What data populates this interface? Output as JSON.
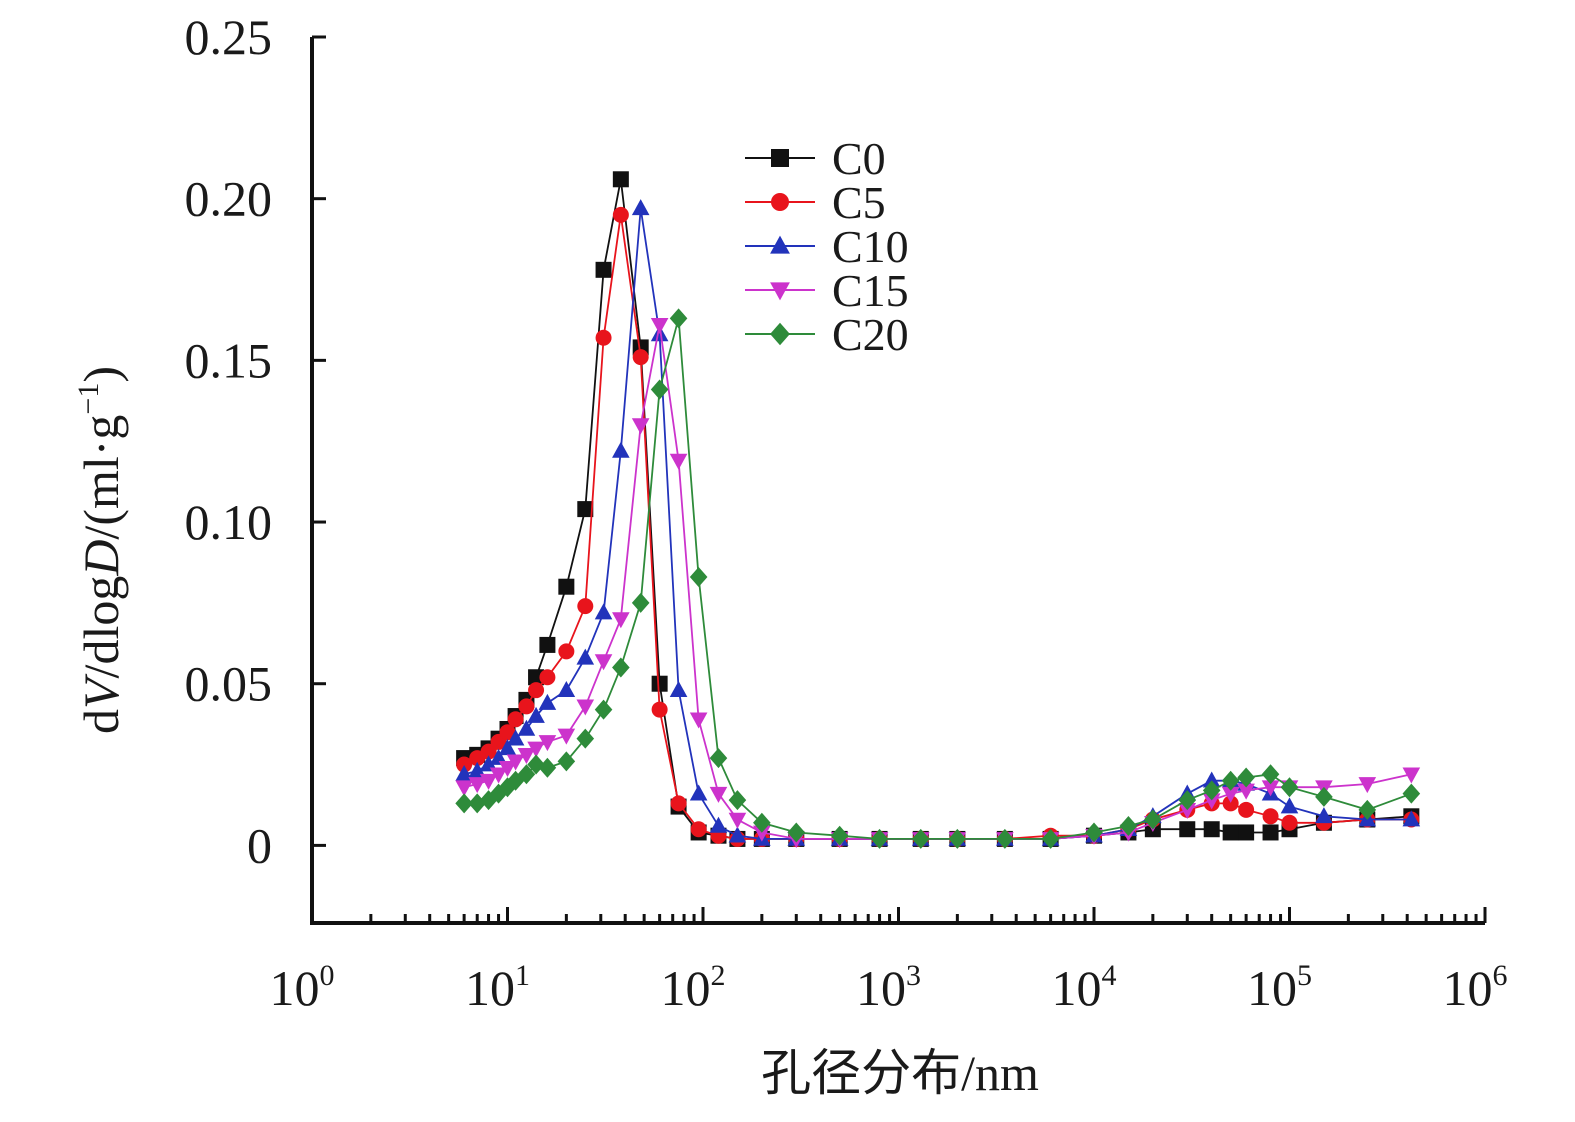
{
  "chart_data": {
    "type": "line",
    "title": "",
    "xlabel": "孔径分布/nm",
    "ylabel": "dV/dlogD/(ml·g⁻¹)",
    "xscale": "log",
    "xlim": [
      1,
      1000000
    ],
    "ylim": [
      -0.024,
      0.25
    ],
    "grid": false,
    "legend_position": "top-center",
    "x_ticks": [
      {
        "value": 1,
        "base": "10",
        "exp": "0"
      },
      {
        "value": 10,
        "base": "10",
        "exp": "1"
      },
      {
        "value": 100,
        "base": "10",
        "exp": "2"
      },
      {
        "value": 1000,
        "base": "10",
        "exp": "3"
      },
      {
        "value": 10000,
        "base": "10",
        "exp": "4"
      },
      {
        "value": 100000,
        "base": "10",
        "exp": "5"
      },
      {
        "value": 1000000,
        "base": "10",
        "exp": "6"
      }
    ],
    "y_ticks": [
      {
        "value": 0,
        "label": "0"
      },
      {
        "value": 0.05,
        "label": "0.05"
      },
      {
        "value": 0.1,
        "label": "0.10"
      },
      {
        "value": 0.15,
        "label": "0.15"
      },
      {
        "value": 0.2,
        "label": "0.20"
      },
      {
        "value": 0.25,
        "label": "0.25"
      }
    ],
    "series": [
      {
        "name": "C0",
        "color": "#111111",
        "marker": "square",
        "x": [
          6,
          7,
          8,
          9,
          10,
          11,
          12.5,
          14,
          16,
          20,
          25,
          31,
          38,
          48,
          60,
          75,
          95,
          120,
          150,
          200,
          300,
          500,
          800,
          1300,
          2000,
          3500,
          6000,
          10000,
          15000,
          20000,
          30000,
          40000,
          50000,
          60000,
          80000,
          100000,
          150000,
          250000,
          420000
        ],
        "y": [
          0.027,
          0.028,
          0.03,
          0.033,
          0.036,
          0.04,
          0.045,
          0.052,
          0.062,
          0.08,
          0.104,
          0.178,
          0.206,
          0.154,
          0.05,
          0.012,
          0.004,
          0.003,
          0.002,
          0.002,
          0.002,
          0.002,
          0.002,
          0.002,
          0.002,
          0.002,
          0.002,
          0.003,
          0.004,
          0.005,
          0.005,
          0.005,
          0.004,
          0.004,
          0.004,
          0.005,
          0.007,
          0.008,
          0.009
        ]
      },
      {
        "name": "C5",
        "color": "#e8141c",
        "marker": "circle",
        "x": [
          6,
          7,
          8,
          9,
          10,
          11,
          12.5,
          14,
          16,
          20,
          25,
          31,
          38,
          48,
          60,
          75,
          95,
          120,
          150,
          200,
          300,
          500,
          800,
          1300,
          2000,
          3500,
          6000,
          10000,
          15000,
          20000,
          30000,
          40000,
          50000,
          60000,
          80000,
          100000,
          150000,
          250000,
          420000
        ],
        "y": [
          0.025,
          0.027,
          0.029,
          0.032,
          0.035,
          0.039,
          0.043,
          0.048,
          0.052,
          0.06,
          0.074,
          0.157,
          0.195,
          0.151,
          0.042,
          0.013,
          0.005,
          0.003,
          0.002,
          0.002,
          0.002,
          0.002,
          0.002,
          0.002,
          0.002,
          0.002,
          0.003,
          0.003,
          0.005,
          0.008,
          0.011,
          0.013,
          0.013,
          0.011,
          0.009,
          0.007,
          0.007,
          0.008,
          0.008
        ]
      },
      {
        "name": "C10",
        "color": "#2233bb",
        "marker": "triangle-up",
        "x": [
          6,
          7,
          8,
          9,
          10,
          11,
          12.5,
          14,
          16,
          20,
          25,
          31,
          38,
          48,
          60,
          75,
          95,
          120,
          150,
          200,
          300,
          500,
          800,
          1300,
          2000,
          3500,
          6000,
          10000,
          15000,
          20000,
          30000,
          40000,
          50000,
          60000,
          80000,
          100000,
          150000,
          250000,
          420000
        ],
        "y": [
          0.022,
          0.023,
          0.025,
          0.027,
          0.03,
          0.033,
          0.036,
          0.04,
          0.044,
          0.048,
          0.058,
          0.072,
          0.122,
          0.197,
          0.158,
          0.048,
          0.016,
          0.006,
          0.003,
          0.002,
          0.002,
          0.002,
          0.002,
          0.002,
          0.002,
          0.002,
          0.002,
          0.003,
          0.005,
          0.009,
          0.016,
          0.02,
          0.02,
          0.019,
          0.016,
          0.012,
          0.009,
          0.008,
          0.008
        ]
      },
      {
        "name": "C15",
        "color": "#cc33cc",
        "marker": "triangle-down",
        "x": [
          6,
          7,
          8,
          9,
          10,
          11,
          12.5,
          14,
          16,
          20,
          25,
          31,
          38,
          48,
          60,
          75,
          95,
          120,
          150,
          200,
          300,
          500,
          800,
          1300,
          2000,
          3500,
          6000,
          10000,
          15000,
          20000,
          30000,
          40000,
          50000,
          60000,
          80000,
          100000,
          150000,
          250000,
          420000
        ],
        "y": [
          0.018,
          0.019,
          0.02,
          0.022,
          0.024,
          0.026,
          0.028,
          0.03,
          0.032,
          0.034,
          0.043,
          0.057,
          0.07,
          0.13,
          0.161,
          0.119,
          0.039,
          0.016,
          0.008,
          0.004,
          0.002,
          0.002,
          0.002,
          0.002,
          0.002,
          0.002,
          0.002,
          0.003,
          0.004,
          0.007,
          0.011,
          0.014,
          0.016,
          0.017,
          0.018,
          0.018,
          0.018,
          0.019,
          0.022
        ]
      },
      {
        "name": "C20",
        "color": "#2e8b3a",
        "marker": "diamond",
        "x": [
          6,
          7,
          8,
          9,
          10,
          11,
          12.5,
          14,
          16,
          20,
          25,
          31,
          38,
          48,
          60,
          75,
          95,
          120,
          150,
          200,
          300,
          500,
          800,
          1300,
          2000,
          3500,
          6000,
          10000,
          15000,
          20000,
          30000,
          40000,
          50000,
          60000,
          80000,
          100000,
          150000,
          250000,
          420000
        ],
        "y": [
          0.013,
          0.013,
          0.014,
          0.016,
          0.018,
          0.02,
          0.022,
          0.025,
          0.024,
          0.026,
          0.033,
          0.042,
          0.055,
          0.075,
          0.141,
          0.163,
          0.083,
          0.027,
          0.014,
          0.007,
          0.004,
          0.003,
          0.002,
          0.002,
          0.002,
          0.002,
          0.002,
          0.004,
          0.006,
          0.008,
          0.014,
          0.017,
          0.02,
          0.021,
          0.022,
          0.018,
          0.015,
          0.011,
          0.016
        ]
      }
    ]
  }
}
